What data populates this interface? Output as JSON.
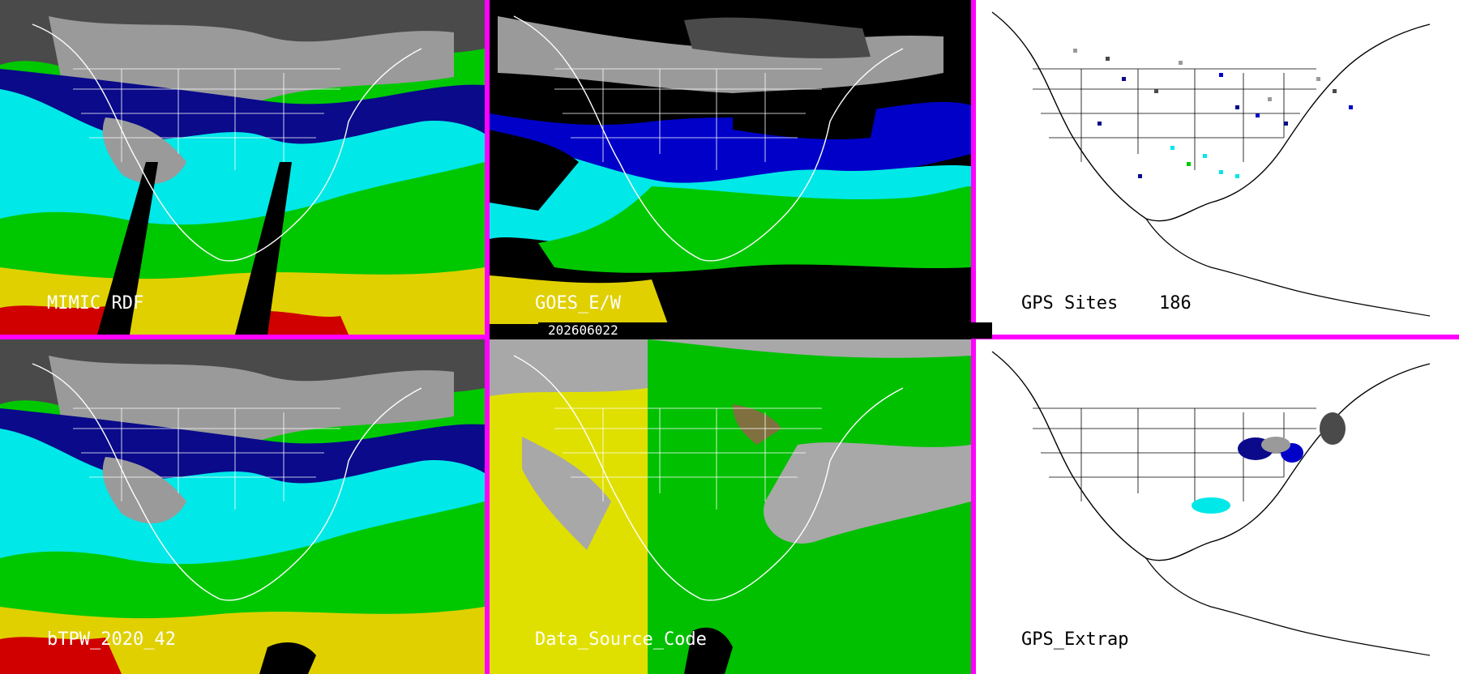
{
  "panels": [
    {
      "id": "mimic-rdf",
      "label": "MIMIC RDF"
    },
    {
      "id": "goes-ew",
      "label": "GOES_E/W"
    },
    {
      "id": "gps-sites",
      "label": "GPS Sites",
      "count": "186"
    },
    {
      "id": "btpw",
      "label": "bTPW_2020_42"
    },
    {
      "id": "data-source-code",
      "label": "Data_Source_Code"
    },
    {
      "id": "gps-extrap",
      "label": "GPS_Extrap"
    }
  ],
  "timestamp": "202606022",
  "colors": {
    "divider": "#ff00ff",
    "palette": [
      "#ffffff",
      "#9a9a9a",
      "#4a4a4a",
      "#0a0a8a",
      "#0000c8",
      "#00e8e8",
      "#00c800",
      "#50b000",
      "#a09030",
      "#e0d000",
      "#d00000"
    ],
    "data_source": [
      "#e0e000",
      "#00c000",
      "#a8a8a8",
      "#000000",
      "#807040"
    ]
  },
  "icons": [
    "coastline-map-outline",
    "state-borders",
    "gps-site-marker"
  ]
}
